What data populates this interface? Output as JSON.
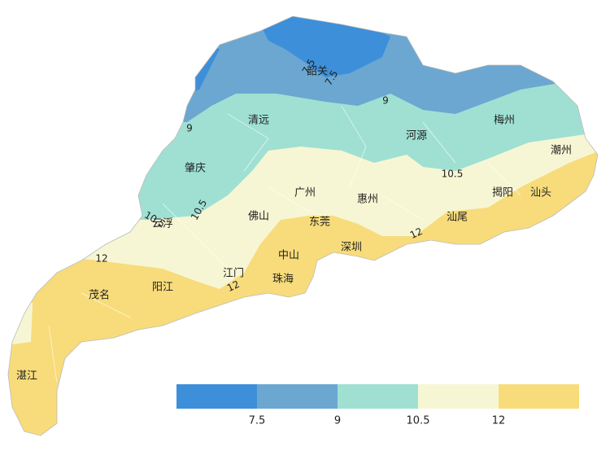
{
  "cities": [
    "韶关",
    "清远",
    "梅州",
    "河源",
    "潮州",
    "肇庆",
    "广州",
    "惠州",
    "揭阳",
    "汕头",
    "佛山",
    "云浮",
    "东莞",
    "汕尾",
    "深圳",
    "中山",
    "江门",
    "珠海",
    "阳江",
    "茂名",
    "湛江"
  ],
  "contour_labels": [
    "7.5",
    "7.5",
    "9",
    "9",
    "10.5",
    "10.5",
    "10.5",
    "12",
    "12",
    "12"
  ],
  "legend": {
    "colors": [
      "#3d8fd9",
      "#6ba7d1",
      "#9fe0d3",
      "#f7f6d4",
      "#f8dc7b"
    ],
    "labels": [
      "7.5",
      "9",
      "10.5",
      "12"
    ]
  }
}
